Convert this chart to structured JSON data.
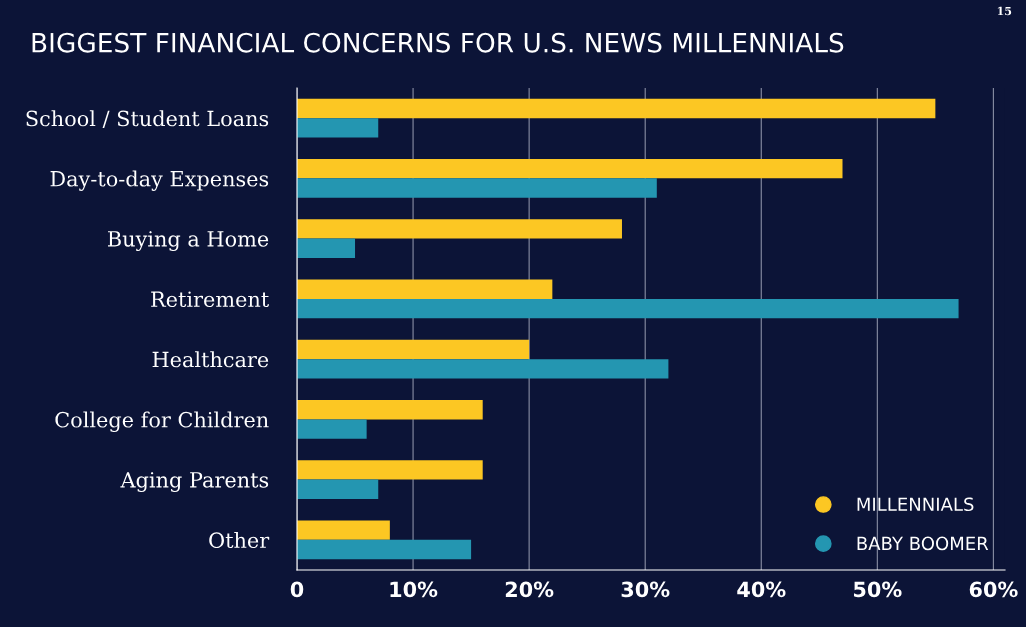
{
  "chart_data": {
    "type": "bar",
    "orientation": "horizontal",
    "title": "BIGGEST FINANCIAL CONCERNS FOR U.S. NEWS MILLENNIALS",
    "categories": [
      "School / Student Loans",
      "Day-to-day Expenses",
      "Buying a Home",
      "Retirement",
      "Healthcare",
      "College for Children",
      "Aging Parents",
      "Other"
    ],
    "series": [
      {
        "name": "MILLENNIALS",
        "color": "#fcc723",
        "values": [
          55,
          47,
          28,
          22,
          20,
          16,
          16,
          8
        ]
      },
      {
        "name": "BABY BOOMER",
        "color": "#2496b1",
        "values": [
          7,
          31,
          5,
          57,
          32,
          6,
          7,
          15
        ]
      }
    ],
    "xlim": [
      0,
      61
    ],
    "xticks": [
      {
        "value": 0,
        "label": "0"
      },
      {
        "value": 10,
        "label": "10%"
      },
      {
        "value": 20,
        "label": "20%"
      },
      {
        "value": 30,
        "label": "30%"
      },
      {
        "value": 40,
        "label": "40%"
      },
      {
        "value": 50,
        "label": "50%"
      },
      {
        "value": 60,
        "label": "60%"
      }
    ],
    "grid": "x",
    "legend": "bottom right",
    "marker": "circle",
    "annotations": [
      "15"
    ]
  }
}
